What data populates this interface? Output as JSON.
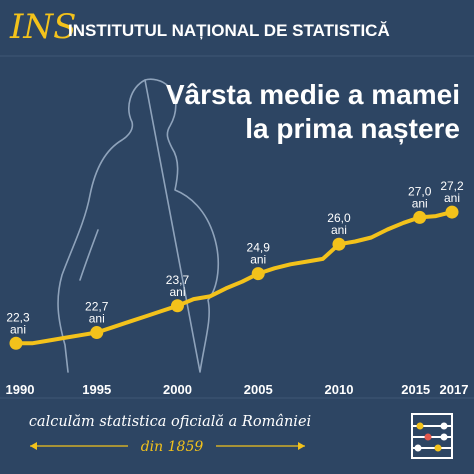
{
  "header": {
    "logo_text": "INS",
    "title": "INSTITUTUL NAȚIONAL DE STATISTICĂ"
  },
  "colors": {
    "background": "#2d4563",
    "accent": "#f3c21b",
    "silhouette": "#8fa3bb",
    "text": "#ffffff"
  },
  "chart_data": {
    "type": "line",
    "title_line1": "Vârsta medie a mamei",
    "title_line2": "la prima naștere",
    "x_ticks": [
      "1990",
      "1995",
      "2000",
      "2005",
      "2010",
      "2015",
      "2017"
    ],
    "x": [
      1990,
      1991,
      1992,
      1993,
      1994,
      1995,
      1996,
      1997,
      1998,
      1999,
      2000,
      2001,
      2002,
      2003,
      2004,
      2005,
      2006,
      2007,
      2008,
      2009,
      2010,
      2011,
      2012,
      2013,
      2014,
      2015,
      2016,
      2017
    ],
    "values": [
      22.3,
      22.3,
      22.4,
      22.5,
      22.6,
      22.7,
      22.9,
      23.1,
      23.3,
      23.5,
      23.7,
      23.95,
      24.05,
      24.35,
      24.6,
      24.9,
      25.1,
      25.25,
      25.35,
      25.45,
      26.0,
      26.1,
      26.25,
      26.55,
      26.8,
      27.0,
      27.05,
      27.2
    ],
    "highlighted": [
      {
        "year": 1990,
        "value_label": "22,3",
        "unit": "ani"
      },
      {
        "year": 1995,
        "value_label": "22,7",
        "unit": "ani"
      },
      {
        "year": 2000,
        "value_label": "23,7",
        "unit": "ani"
      },
      {
        "year": 2005,
        "value_label": "24,9",
        "unit": "ani"
      },
      {
        "year": 2010,
        "value_label": "26,0",
        "unit": "ani"
      },
      {
        "year": 2015,
        "value_label": "27,0",
        "unit": "ani"
      },
      {
        "year": 2017,
        "value_label": "27,2",
        "unit": "ani"
      }
    ],
    "ylim": [
      21.6,
      27.8
    ]
  },
  "footer": {
    "line1": "calculăm statistica oficială a României",
    "line2": "din 1859",
    "icon": "abacus-icon"
  }
}
